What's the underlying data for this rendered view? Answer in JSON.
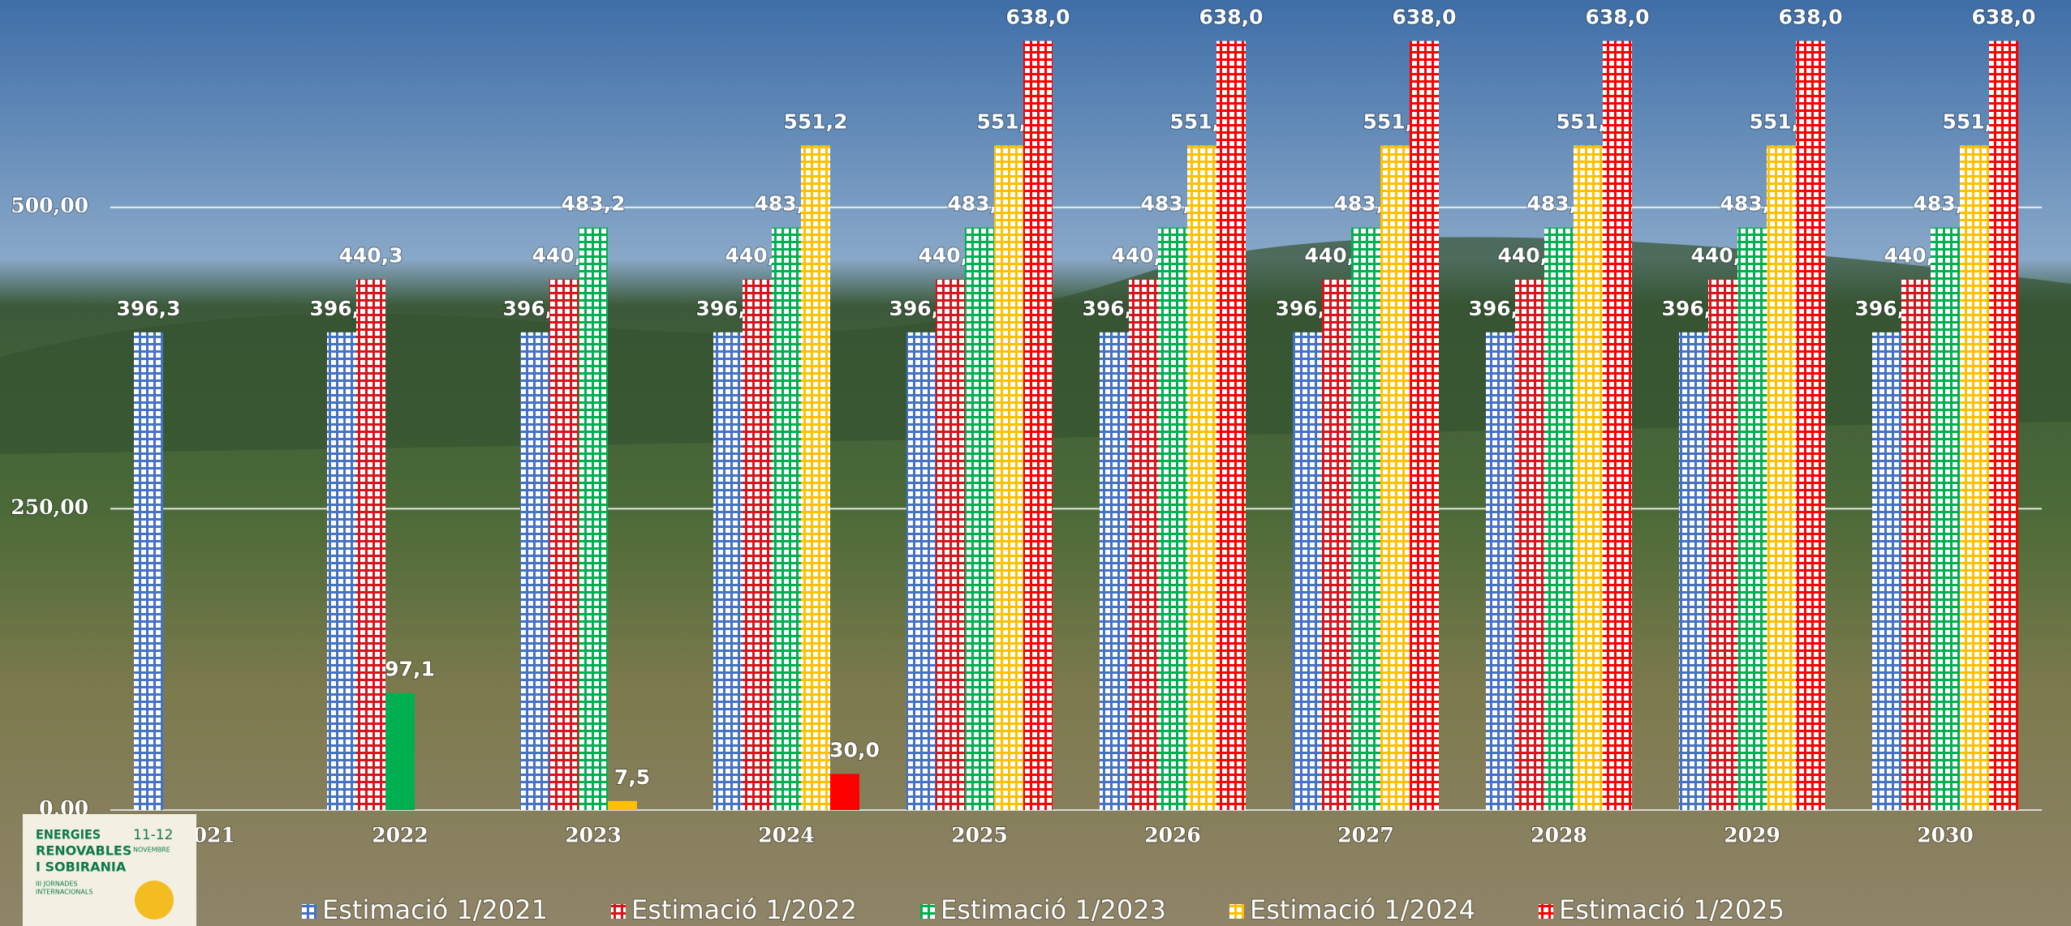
{
  "chart_data": {
    "type": "bar",
    "categories": [
      "2021",
      "2022",
      "2023",
      "2024",
      "2025",
      "2026",
      "2027",
      "2028",
      "2029",
      "2030"
    ],
    "series": [
      {
        "name": "Estimació 1/2021",
        "color": "#4472c4",
        "values": [
          396.3,
          396.3,
          396.3,
          396.3,
          396.3,
          396.3,
          396.3,
          396.3,
          396.3,
          396.3
        ],
        "value_labels": [
          "396,3",
          "396,3",
          "396,3",
          "396,3",
          "396,3",
          "396,3",
          "396,3",
          "396,3",
          "396,3",
          "396,3"
        ],
        "styles": [
          "grid",
          "grid",
          "grid",
          "grid",
          "grid",
          "grid",
          "grid",
          "grid",
          "grid",
          "grid"
        ]
      },
      {
        "name": "Estimació 1/2022",
        "color": "#d9141b",
        "values": [
          null,
          440.3,
          440.3,
          440.3,
          440.3,
          440.3,
          440.3,
          440.3,
          440.3,
          440.3
        ],
        "value_labels": [
          null,
          "440,3",
          "440,3",
          "440,3",
          "440,3",
          "440,3",
          "440,3",
          "440,3",
          "440,3",
          "440,3"
        ],
        "styles": [
          null,
          "grid",
          "grid",
          "grid",
          "grid",
          "grid",
          "grid",
          "grid",
          "grid",
          "grid"
        ]
      },
      {
        "name": "Estimació 1/2023",
        "color": "#00b050",
        "values": [
          null,
          97.1,
          483.2,
          483.2,
          483.2,
          483.2,
          483.2,
          483.2,
          483.2,
          483.2
        ],
        "value_labels": [
          null,
          "97,1",
          "483,2",
          "483,2",
          "483,2",
          "483,2",
          "483,2",
          "483,2",
          "483,2",
          "483,2"
        ],
        "styles": [
          null,
          "solid",
          "grid",
          "grid",
          "grid",
          "grid",
          "grid",
          "grid",
          "grid",
          "grid"
        ]
      },
      {
        "name": "Estimació 1/2024",
        "color": "#ffc000",
        "values": [
          null,
          null,
          7.5,
          551.2,
          551.2,
          551.2,
          551.2,
          551.2,
          551.2,
          551.2
        ],
        "value_labels": [
          null,
          null,
          "7,5",
          "551,2",
          "551,2",
          "551,2",
          "551,2",
          "551,2",
          "551,2",
          "551,2"
        ],
        "styles": [
          null,
          null,
          "solid",
          "grid",
          "grid",
          "grid",
          "grid",
          "grid",
          "grid",
          "grid"
        ]
      },
      {
        "name": "Estimació 1/2025",
        "color": "#ff0000",
        "values": [
          null,
          null,
          null,
          30.0,
          638.0,
          638.0,
          638.0,
          638.0,
          638.0,
          638.0
        ],
        "value_labels": [
          null,
          null,
          null,
          "30,0",
          "638,0",
          "638,0",
          "638,0",
          "638,0",
          "638,0",
          "638,0"
        ],
        "styles": [
          null,
          null,
          null,
          "solid",
          "grid",
          "grid",
          "grid",
          "grid",
          "grid",
          "grid"
        ]
      }
    ],
    "ylim": [
      0,
      672
    ],
    "yticks": [
      {
        "value": 0,
        "label": "0,00"
      },
      {
        "value": 250,
        "label": "250,00"
      },
      {
        "value": 500,
        "label": "500,00"
      }
    ],
    "grid": true,
    "legend": "bottom"
  },
  "logo": {
    "title": [
      "ENERGIES",
      "RENOVABLES",
      "I SOBIRANIA"
    ],
    "date": "11-12",
    "month": "NOVEMBRE",
    "subtitle": [
      "III JORNADES",
      "INTERNACIONALS"
    ]
  }
}
